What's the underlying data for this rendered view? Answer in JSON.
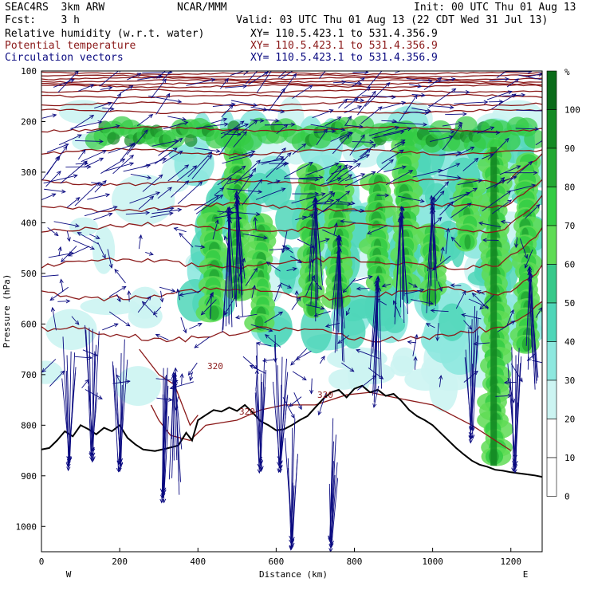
{
  "header": {
    "model": "SEAC4RS  3km ARW",
    "center": "NCAR/MMM",
    "init": "Init: 00 UTC Thu 01 Aug 13",
    "fcst": "Fcst:    3 h",
    "valid": "Valid: 03 UTC Thu 01 Aug 13 (22 CDT Wed 31 Jul 13)",
    "fields": [
      {
        "label": "Relative humidity (w.r.t. water)",
        "xy": "XY= 110.5.423.1 to 531.4.356.9",
        "color": "#000000"
      },
      {
        "label": "Potential temperature",
        "xy": "XY= 110.5.423.1 to 531.4.356.9",
        "color": "#8b1a1a"
      },
      {
        "label": "Circulation vectors",
        "xy": "XY= 110.5.423.1 to 531.4.356.9",
        "color": "#0a0a80"
      }
    ]
  },
  "chart_data": {
    "type": "heatmap",
    "xlabel": "Distance (km)",
    "ylabel": "Pressure (hPa)",
    "xlim": [
      0,
      1280
    ],
    "ylim": [
      1050,
      100
    ],
    "x_ticks": [
      "0",
      "200",
      "400",
      "600",
      "800",
      "1000",
      "1200"
    ],
    "y_ticks": [
      "100",
      "200",
      "300",
      "400",
      "500",
      "600",
      "700",
      "800",
      "900",
      "1000"
    ],
    "west_label": "W",
    "east_label": "E",
    "colorbar": {
      "unit": "%",
      "labels": [
        "100",
        "90",
        "80",
        "70",
        "60",
        "50",
        "40",
        "30",
        "20",
        "10",
        "0"
      ],
      "colors": [
        "#0b6b1a",
        "#148a24",
        "#23a833",
        "#33cc44",
        "#5fdc55",
        "#38c98a",
        "#4fd6b8",
        "#8ee8df",
        "#ccf4f2",
        "#ffffff",
        "#ffffff"
      ]
    },
    "theta_labels": [
      "320",
      "320",
      "320"
    ],
    "theta_color": "#8b1a1a",
    "vector_color": "#0a0a80",
    "terrain_color": "#000000"
  }
}
